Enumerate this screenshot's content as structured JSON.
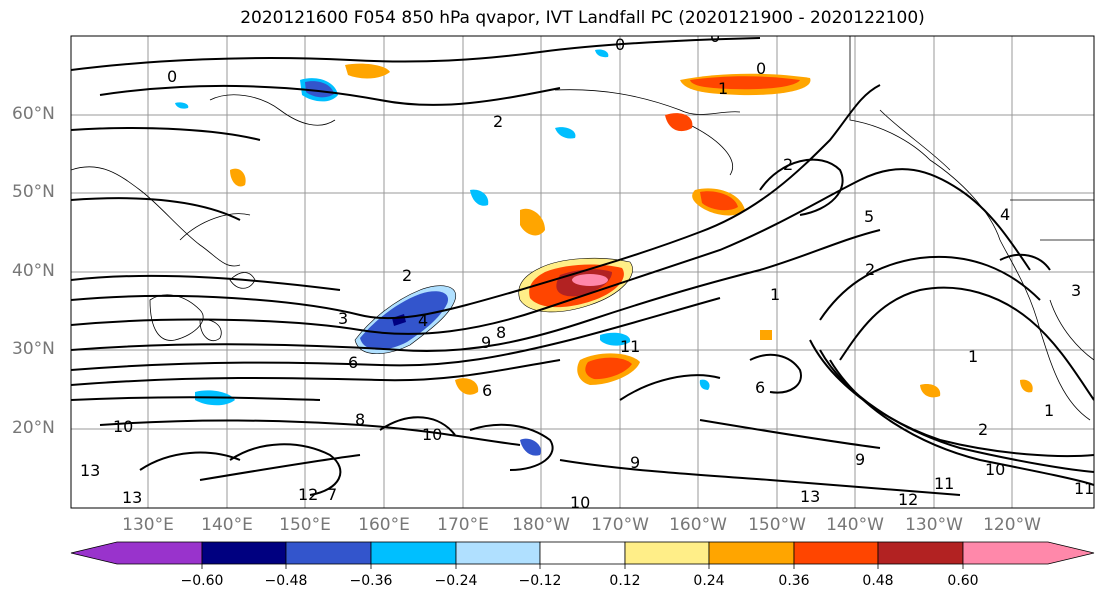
{
  "title": "2020121600 F054 850 hPa qvapor, IVT Landfall PC (2020121900 - 2020122100)",
  "lat_labels": [
    "60°N",
    "50°N",
    "40°N",
    "30°N",
    "20°N"
  ],
  "lon_labels": [
    "130°E",
    "140°E",
    "150°E",
    "160°E",
    "170°E",
    "180°W",
    "170°W",
    "160°W",
    "150°W",
    "140°W",
    "130°W",
    "120°W"
  ],
  "colorbar": {
    "colors": [
      "#9933cc",
      "#000080",
      "#3355cc",
      "#00bfff",
      "#b0e0ff",
      "#ffffff",
      "#ffee88",
      "#ffa500",
      "#ff4500",
      "#b22222",
      "#ff88aa"
    ],
    "ticks": [
      "−0.60",
      "−0.48",
      "−0.36",
      "−0.24",
      "−0.12",
      "0.12",
      "0.24",
      "0.36",
      "0.48",
      "0.60"
    ]
  },
  "contour_labels": [
    "0",
    "0",
    "0",
    "0",
    "1",
    "2",
    "2",
    "2",
    "3",
    "4",
    "6",
    "8",
    "9",
    "10",
    "10",
    "10",
    "11",
    "12",
    "13",
    "13",
    "2",
    "6",
    "8",
    "9",
    "9",
    "10",
    "11",
    "11",
    "12",
    "13",
    "3",
    "4",
    "5",
    "6",
    "7",
    "1",
    "1",
    "1",
    "2"
  ]
}
